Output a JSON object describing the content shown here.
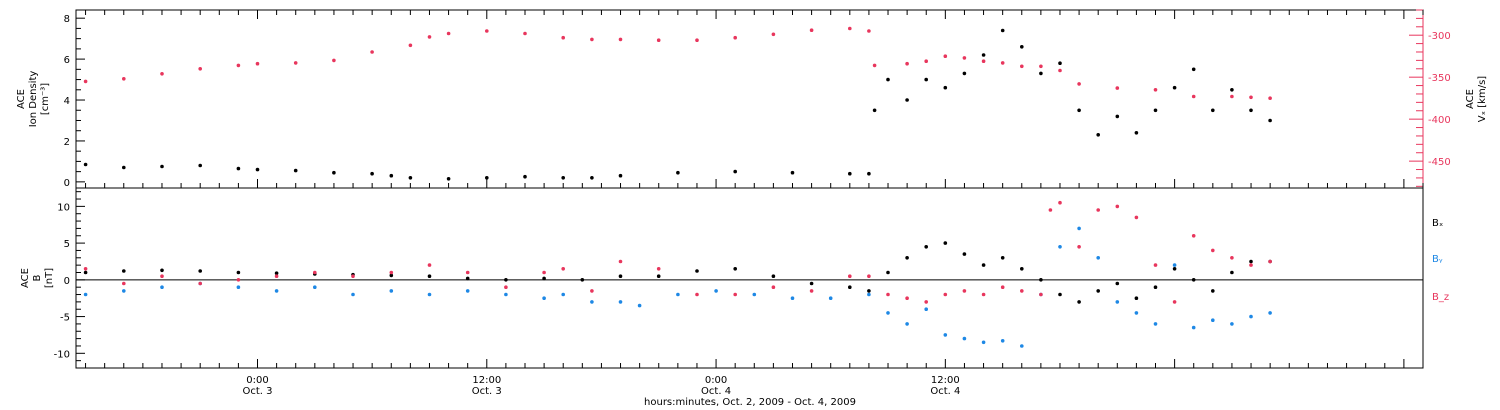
{
  "chart_data": [
    {
      "type": "scatter",
      "panel": "top",
      "ylabel_left": [
        "ACE",
        "Ion Density",
        "[cm⁻³]"
      ],
      "ylabel_right": [
        "ACE",
        "Vₓ [km/s]"
      ],
      "ylim_left": [
        -0.3,
        8.4
      ],
      "yticks_left": [
        "0",
        "2",
        "4",
        "6",
        "8"
      ],
      "ylim_right": [
        -482,
        -270
      ],
      "yticks_right": [
        "-300",
        "-350",
        "-400",
        "-450"
      ],
      "right_axis_color": "#e8365d",
      "grid": false,
      "series": [
        {
          "color": "#000000",
          "axis": "left",
          "points": [
            [
              -9.0,
              0.85
            ],
            [
              -7.0,
              0.7
            ],
            [
              -5.0,
              0.75
            ],
            [
              -3.0,
              0.8
            ],
            [
              -1.0,
              0.65
            ],
            [
              0.0,
              0.6
            ],
            [
              2.0,
              0.55
            ],
            [
              4.0,
              0.45
            ],
            [
              6.0,
              0.4
            ],
            [
              7.0,
              0.3
            ],
            [
              8.0,
              0.2
            ],
            [
              10.0,
              0.15
            ],
            [
              12.0,
              0.2
            ],
            [
              14.0,
              0.25
            ],
            [
              16.0,
              0.2
            ],
            [
              17.5,
              0.2
            ],
            [
              19.0,
              0.3
            ],
            [
              22.0,
              0.45
            ],
            [
              25.0,
              0.5
            ],
            [
              28.0,
              0.45
            ],
            [
              31.0,
              0.4
            ],
            [
              32.0,
              0.4
            ],
            [
              32.3,
              3.5
            ],
            [
              33.0,
              5.0
            ],
            [
              34.0,
              4.0
            ],
            [
              35.0,
              5.0
            ],
            [
              36.0,
              4.6
            ],
            [
              37.0,
              5.3
            ],
            [
              38.0,
              6.2
            ],
            [
              39.0,
              7.4
            ],
            [
              40.0,
              6.6
            ],
            [
              41.0,
              5.3
            ],
            [
              42.0,
              5.8
            ],
            [
              43.0,
              3.5
            ],
            [
              44.0,
              2.3
            ],
            [
              45.0,
              3.2
            ],
            [
              46.0,
              2.4
            ],
            [
              47.0,
              3.5
            ],
            [
              48.0,
              4.6
            ],
            [
              49.0,
              5.5
            ],
            [
              50.0,
              3.5
            ],
            [
              51.0,
              4.5
            ],
            [
              52.0,
              3.5
            ],
            [
              53.0,
              3.0
            ]
          ]
        },
        {
          "color": "#e8365d",
          "axis": "right",
          "points": [
            [
              -9.0,
              -355
            ],
            [
              -7.0,
              -352
            ],
            [
              -5.0,
              -346
            ],
            [
              -3.0,
              -340
            ],
            [
              -1.0,
              -336
            ],
            [
              0.0,
              -334
            ],
            [
              2.0,
              -333
            ],
            [
              4.0,
              -330
            ],
            [
              6.0,
              -320
            ],
            [
              8.0,
              -312
            ],
            [
              9.0,
              -302
            ],
            [
              10.0,
              -298
            ],
            [
              12.0,
              -295
            ],
            [
              14.0,
              -298
            ],
            [
              16.0,
              -303
            ],
            [
              17.5,
              -305
            ],
            [
              19.0,
              -305
            ],
            [
              21.0,
              -306
            ],
            [
              23.0,
              -306
            ],
            [
              25.0,
              -303
            ],
            [
              27.0,
              -299
            ],
            [
              29.0,
              -294
            ],
            [
              31.0,
              -292
            ],
            [
              32.0,
              -295
            ],
            [
              32.3,
              -336
            ],
            [
              34.0,
              -334
            ],
            [
              35.0,
              -331
            ],
            [
              36.0,
              -325
            ],
            [
              37.0,
              -327
            ],
            [
              38.0,
              -331
            ],
            [
              39.0,
              -333
            ],
            [
              40.0,
              -337
            ],
            [
              41.0,
              -337
            ],
            [
              42.0,
              -342
            ],
            [
              43.0,
              -358
            ],
            [
              45.0,
              -363
            ],
            [
              47.0,
              -365
            ],
            [
              49.0,
              -373
            ],
            [
              51.0,
              -373
            ],
            [
              52.0,
              -374
            ],
            [
              53.0,
              -375
            ]
          ]
        }
      ]
    },
    {
      "type": "scatter",
      "panel": "bottom",
      "ylabel": [
        "ACE",
        "B",
        "[nT]"
      ],
      "ylim": [
        -12,
        12.5
      ],
      "yticks": [
        "10",
        "5",
        "0",
        "-5",
        "-10"
      ],
      "zero_line": true,
      "grid": false,
      "series": [
        {
          "name": "Bₓ",
          "color": "#000000",
          "points": [
            [
              -9.0,
              1.0
            ],
            [
              -7.0,
              1.2
            ],
            [
              -5.0,
              1.3
            ],
            [
              -3.0,
              1.2
            ],
            [
              -1.0,
              1.0
            ],
            [
              1.0,
              0.9
            ],
            [
              3.0,
              0.8
            ],
            [
              5.0,
              0.7
            ],
            [
              7.0,
              0.6
            ],
            [
              9.0,
              0.5
            ],
            [
              11.0,
              0.2
            ],
            [
              13.0,
              0.0
            ],
            [
              15.0,
              0.2
            ],
            [
              17.0,
              0.0
            ],
            [
              19.0,
              0.5
            ],
            [
              21.0,
              0.5
            ],
            [
              23.0,
              1.2
            ],
            [
              25.0,
              1.5
            ],
            [
              27.0,
              0.5
            ],
            [
              29.0,
              -0.5
            ],
            [
              31.0,
              -1.0
            ],
            [
              32.0,
              -1.5
            ],
            [
              33.0,
              1.0
            ],
            [
              34.0,
              3.0
            ],
            [
              35.0,
              4.5
            ],
            [
              36.0,
              5.0
            ],
            [
              37.0,
              3.5
            ],
            [
              38.0,
              2.0
            ],
            [
              39.0,
              3.0
            ],
            [
              40.0,
              1.5
            ],
            [
              41.0,
              0.0
            ],
            [
              42.0,
              -2.0
            ],
            [
              43.0,
              -3.0
            ],
            [
              44.0,
              -1.5
            ],
            [
              45.0,
              -0.5
            ],
            [
              46.0,
              -2.5
            ],
            [
              47.0,
              -1.0
            ],
            [
              48.0,
              1.5
            ],
            [
              49.0,
              0.0
            ],
            [
              50.0,
              -1.5
            ],
            [
              51.0,
              1.0
            ],
            [
              52.0,
              2.5
            ],
            [
              53.0,
              2.5
            ]
          ]
        },
        {
          "name": "Bᵧ",
          "color": "#1e88e5",
          "points": [
            [
              -9.0,
              -2.0
            ],
            [
              -7.0,
              -1.5
            ],
            [
              -5.0,
              -1.0
            ],
            [
              -3.0,
              -0.5
            ],
            [
              -1.0,
              -1.0
            ],
            [
              1.0,
              -1.5
            ],
            [
              3.0,
              -1.0
            ],
            [
              5.0,
              -2.0
            ],
            [
              7.0,
              -1.5
            ],
            [
              9.0,
              -2.0
            ],
            [
              11.0,
              -1.5
            ],
            [
              13.0,
              -2.0
            ],
            [
              15.0,
              -2.5
            ],
            [
              16.0,
              -2.0
            ],
            [
              17.5,
              -3.0
            ],
            [
              19.0,
              -3.0
            ],
            [
              20.0,
              -3.5
            ],
            [
              22.0,
              -2.0
            ],
            [
              24.0,
              -1.5
            ],
            [
              26.0,
              -2.0
            ],
            [
              28.0,
              -2.5
            ],
            [
              30.0,
              -2.5
            ],
            [
              32.0,
              -2.0
            ],
            [
              33.0,
              -4.5
            ],
            [
              34.0,
              -6.0
            ],
            [
              35.0,
              -4.0
            ],
            [
              36.0,
              -7.5
            ],
            [
              37.0,
              -8.0
            ],
            [
              38.0,
              -8.5
            ],
            [
              39.0,
              -8.3
            ],
            [
              40.0,
              -9.0
            ],
            [
              41.0,
              -2.0
            ],
            [
              42.0,
              4.5
            ],
            [
              43.0,
              7.0
            ],
            [
              44.0,
              3.0
            ],
            [
              45.0,
              -3.0
            ],
            [
              46.0,
              -4.5
            ],
            [
              47.0,
              -6.0
            ],
            [
              48.0,
              2.0
            ],
            [
              49.0,
              -6.5
            ],
            [
              50.0,
              -5.5
            ],
            [
              51.0,
              -6.0
            ],
            [
              52.0,
              -5.0
            ],
            [
              53.0,
              -4.5
            ]
          ]
        },
        {
          "name": "B_z",
          "color": "#e8365d",
          "points": [
            [
              -9.0,
              1.5
            ],
            [
              -7.0,
              -0.5
            ],
            [
              -5.0,
              0.5
            ],
            [
              -3.0,
              -0.5
            ],
            [
              -1.0,
              0.0
            ],
            [
              1.0,
              0.5
            ],
            [
              3.0,
              1.0
            ],
            [
              5.0,
              0.5
            ],
            [
              7.0,
              1.0
            ],
            [
              9.0,
              2.0
            ],
            [
              11.0,
              1.0
            ],
            [
              13.0,
              -1.0
            ],
            [
              15.0,
              1.0
            ],
            [
              16.0,
              1.5
            ],
            [
              17.5,
              -1.5
            ],
            [
              19.0,
              2.5
            ],
            [
              21.0,
              1.5
            ],
            [
              23.0,
              -2.0
            ],
            [
              25.0,
              -2.0
            ],
            [
              27.0,
              -1.0
            ],
            [
              29.0,
              -1.5
            ],
            [
              31.0,
              0.5
            ],
            [
              32.0,
              0.5
            ],
            [
              33.0,
              -2.0
            ],
            [
              34.0,
              -2.5
            ],
            [
              35.0,
              -3.0
            ],
            [
              36.0,
              -2.0
            ],
            [
              37.0,
              -1.5
            ],
            [
              38.0,
              -2.0
            ],
            [
              39.0,
              -1.0
            ],
            [
              40.0,
              -1.5
            ],
            [
              41.0,
              -2.0
            ],
            [
              41.5,
              9.5
            ],
            [
              42.0,
              10.5
            ],
            [
              43.0,
              4.5
            ],
            [
              44.0,
              9.5
            ],
            [
              45.0,
              10.0
            ],
            [
              46.0,
              8.5
            ],
            [
              47.0,
              2.0
            ],
            [
              48.0,
              -3.0
            ],
            [
              49.0,
              6.0
            ],
            [
              50.0,
              4.0
            ],
            [
              51.0,
              3.0
            ],
            [
              52.0,
              2.0
            ],
            [
              53.0,
              2.5
            ]
          ]
        }
      ]
    }
  ],
  "xaxis": {
    "unit_hint": "hours since Oct. 3, 2009 00:00",
    "xlim": [
      -9.5,
      61.0
    ],
    "ticks": [
      {
        "at": 0,
        "time": "0:00",
        "day": "Oct. 3"
      },
      {
        "at": 12,
        "time": "12:00",
        "day": "Oct. 3"
      },
      {
        "at": 24,
        "time": "0:00",
        "day": "Oct. 4"
      },
      {
        "at": 36,
        "time": "12:00",
        "day": "Oct. 4"
      }
    ],
    "xlabel": "hours:minutes, Oct.  2, 2009 - Oct.  4, 2009"
  }
}
